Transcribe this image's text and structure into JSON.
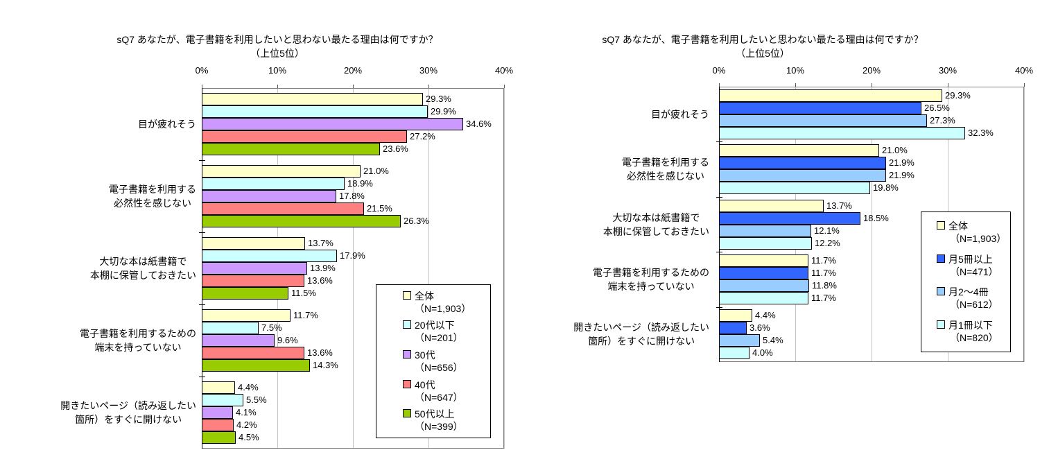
{
  "chart_data": [
    {
      "type": "bar",
      "orientation": "horizontal",
      "title": "sQ7 あなたが、電子書籍を利用したいと思わない最たる理由は何ですか？",
      "subtitle": "（上位5位）",
      "axis": {
        "min": 0,
        "max": 40,
        "ticks": [
          "0%",
          "10%",
          "20%",
          "30%",
          "40%"
        ],
        "position": "top",
        "grid": true
      },
      "categories": [
        [
          "目が疲れそう"
        ],
        [
          "電子書籍を利用する",
          "必然性を感じない"
        ],
        [
          "大切な本は紙書籍で",
          "本棚に保管しておきたい"
        ],
        [
          "電子書籍を利用するための",
          "端末を持っていない"
        ],
        [
          "開きたいページ（読み返したい",
          "箇所）をすぐに開けない"
        ]
      ],
      "series": [
        {
          "name": "全体",
          "n_label": "（N=1,903）",
          "color": "#FFFFCC",
          "values": [
            29.3,
            21.0,
            13.7,
            11.7,
            4.4
          ]
        },
        {
          "name": "20代以下",
          "n_label": "（N=201）",
          "color": "#CCFFFF",
          "values": [
            29.9,
            18.9,
            17.9,
            7.5,
            5.5
          ]
        },
        {
          "name": "30代",
          "n_label": "（N=656）",
          "color": "#CC99FF",
          "values": [
            34.6,
            17.8,
            13.9,
            9.6,
            4.1
          ]
        },
        {
          "name": "40代",
          "n_label": "（N=647）",
          "color": "#FF8080",
          "values": [
            27.2,
            21.5,
            13.6,
            13.6,
            4.2
          ]
        },
        {
          "name": "50代以上",
          "n_label": "（N=399）",
          "color": "#99CC00",
          "values": [
            23.6,
            26.3,
            11.5,
            14.3,
            4.5
          ]
        }
      ],
      "value_suffix": "%",
      "legend_position": "inside-right"
    },
    {
      "type": "bar",
      "orientation": "horizontal",
      "title": "sQ7 あなたが、電子書籍を利用したいと思わない最たる理由は何ですか？",
      "subtitle": "（上位5位）",
      "axis": {
        "min": 0,
        "max": 40,
        "ticks": [
          "0%",
          "10%",
          "20%",
          "30%",
          "40%"
        ],
        "position": "top",
        "grid": true
      },
      "categories": [
        [
          "目が疲れそう"
        ],
        [
          "電子書籍を利用する",
          "必然性を感じない"
        ],
        [
          "大切な本は紙書籍で",
          "本棚に保管しておきたい"
        ],
        [
          "電子書籍を利用するための",
          "端末を持っていない"
        ],
        [
          "開きたいページ（読み返したい",
          "箇所）をすぐに開けない"
        ]
      ],
      "series": [
        {
          "name": "全体",
          "n_label": "（N=1,903）",
          "color": "#FFFFCC",
          "values": [
            29.3,
            21.0,
            13.7,
            11.7,
            4.4
          ]
        },
        {
          "name": "月5冊以上",
          "n_label": "（N=471）",
          "color": "#3366FF",
          "values": [
            26.5,
            21.9,
            18.5,
            11.7,
            3.6
          ]
        },
        {
          "name": "月2～4冊",
          "n_label": "（N=612）",
          "color": "#99CCFF",
          "values": [
            27.3,
            21.9,
            12.1,
            11.8,
            5.4
          ]
        },
        {
          "name": "月1冊以下",
          "n_label": "（N=820）",
          "color": "#CCFFFF",
          "values": [
            32.3,
            19.8,
            12.2,
            11.7,
            4.0
          ]
        }
      ],
      "value_suffix": "%",
      "legend_position": "inside-right"
    }
  ]
}
